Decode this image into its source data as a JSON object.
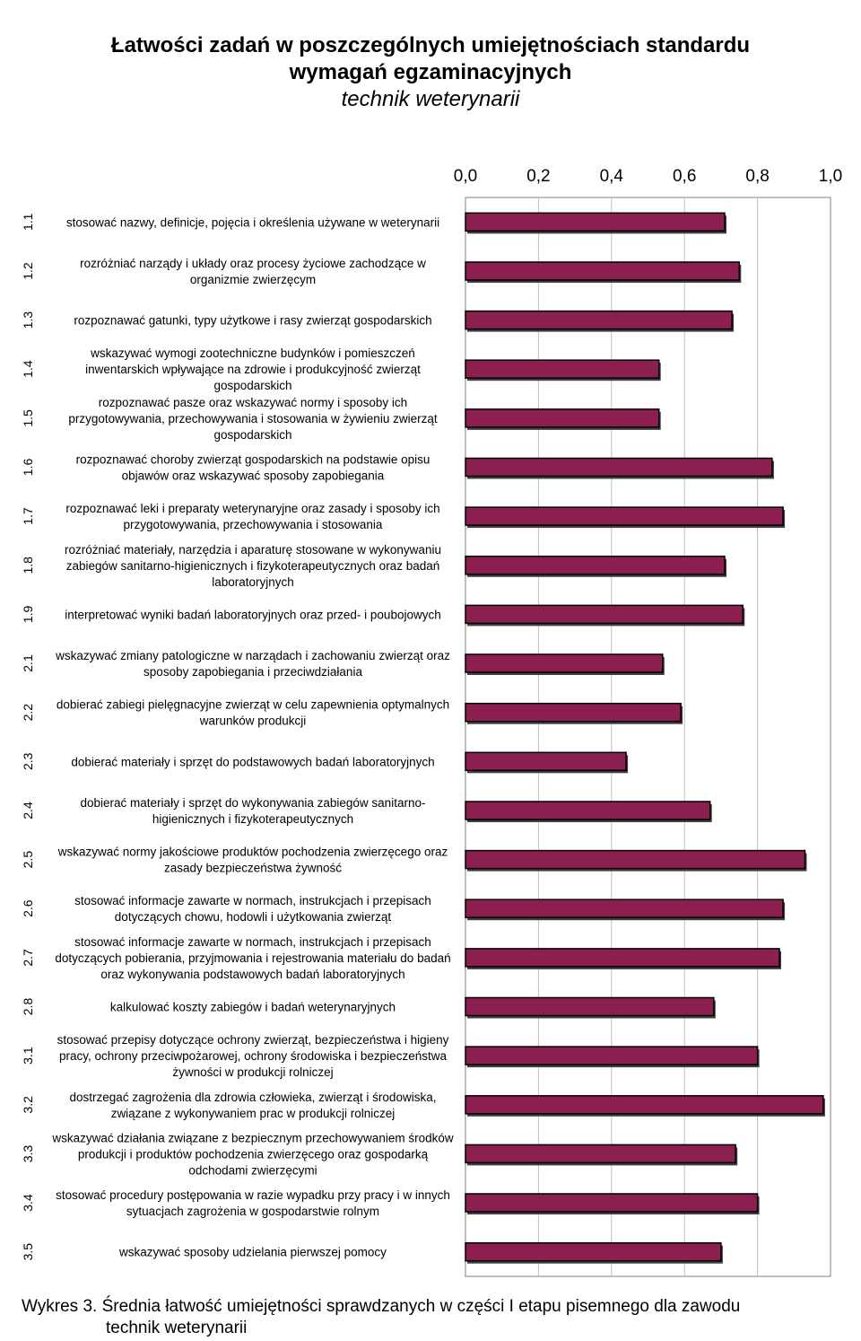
{
  "title_line1": "Łatwości zadań w poszczególnych umiejętnościach standardu",
  "title_line2": "wymagań egzaminacyjnych",
  "subtitle": "technik weterynarii",
  "caption_line1": "Wykres 3. Średnia łatwość umiejętności sprawdzanych w części I etapu pisemnego dla zawodu",
  "caption_line2": "technik weterynarii",
  "colors": {
    "bar": "#8b1f4f",
    "bar_edge": "#000000",
    "grid": "#bfbfbf"
  },
  "chart_data": {
    "type": "bar",
    "orientation": "horizontal",
    "xlim": [
      0,
      1
    ],
    "x_ticks": [
      "0,0",
      "0,2",
      "0,4",
      "0,6",
      "0,8",
      "1,0"
    ],
    "grid": true,
    "categories": [
      "1.1",
      "1.2",
      "1.3",
      "1.4",
      "1.5",
      "1.6",
      "1.7",
      "1.8",
      "1.9",
      "2.1",
      "2.2",
      "2.3",
      "2.4",
      "2.5",
      "2.6",
      "2.7",
      "2.8",
      "3.1",
      "3.2",
      "3.3",
      "3.4",
      "3.5"
    ],
    "labels": [
      [
        "stosować nazwy, definicje, pojęcia i określenia używane w weterynarii"
      ],
      [
        "rozróżniać narządy i układy oraz procesy życiowe zachodzące w",
        "organizmie zwierzęcym"
      ],
      [
        "rozpoznawać gatunki, typy użytkowe i rasy zwierząt gospodarskich"
      ],
      [
        "wskazywać wymogi zootechniczne budynków i pomieszczeń",
        "inwentarskich wpływające na zdrowie            i produkcyjność zwierząt",
        "gospodarskich"
      ],
      [
        "rozpoznawać pasze oraz wskazywać normy i sposoby ich",
        "przygotowywania, przechowywania i stosowania w żywieniu zwierząt",
        "gospodarskich"
      ],
      [
        "rozpoznawać choroby zwierząt gospodarskich na podstawie opisu",
        "objawów oraz wskazywać sposoby zapobiegania"
      ],
      [
        "rozpoznawać leki i preparaty weterynaryjne oraz zasady i sposoby ich",
        "przygotowywania, przechowywania    i stosowania"
      ],
      [
        "rozróżniać materiały, narzędzia i aparaturę stosowane w wykonywaniu",
        "zabiegów sanitarno-higienicznych    i fizykoterapeutycznych oraz badań",
        "laboratoryjnych"
      ],
      [
        "interpretować wyniki badań laboratoryjnych oraz przed- i poubojowych"
      ],
      [
        "wskazywać zmiany patologiczne w narządach i zachowaniu zwierząt oraz",
        "sposoby zapobiegania                  i przeciwdziałania"
      ],
      [
        "dobierać zabiegi pielęgnacyjne zwierząt w celu zapewnienia optymalnych",
        "warunków  produkcji"
      ],
      [
        "dobierać materiały i sprzęt do podstawowych badań laboratoryjnych"
      ],
      [
        "dobierać materiały i sprzęt do wykonywania zabiegów sanitarno-",
        "higienicznych i fizykoterapeutycznych"
      ],
      [
        "wskazywać normy jakościowe produktów pochodzenia zwierzęcego oraz",
        "zasady bezpieczeństwa żywność"
      ],
      [
        "stosować informacje zawarte w normach, instrukcjach i przepisach",
        "dotyczących chowu, hodowli                  i użytkowania zwierząt"
      ],
      [
        "stosować informacje zawarte w normach, instrukcjach i przepisach",
        "dotyczących pobierania, przyjmowania i rejestrowania materiału do badań",
        "oraz wykonywania podstawowych badań laboratoryjnych"
      ],
      [
        "kalkulować koszty zabiegów i badań weterynaryjnych"
      ],
      [
        "stosować przepisy dotyczące ochrony zwierząt, bezpieczeństwa i higieny",
        "pracy, ochrony przeciwpożarowej, ochrony środowiska i bezpieczeństwa",
        "żywności w produkcji rolniczej"
      ],
      [
        "dostrzegać zagrożenia dla zdrowia człowieka, zwierząt i środowiska,",
        "związane z wykonywaniem prac      w produkcji rolniczej"
      ],
      [
        "wskazywać działania związane z bezpiecznym przechowywaniem środków",
        "produkcji i produktów pochodzenia zwierzęcego oraz gospodarką",
        "odchodami zwierzęcymi"
      ],
      [
        "stosować procedury postępowania w razie wypadku przy pracy i w innych",
        "sytuacjach zagrożenia               w gospodarstwie rolnym"
      ],
      [
        "wskazywać sposoby udzielania pierwszej pomocy"
      ]
    ],
    "values": [
      0.71,
      0.75,
      0.73,
      0.53,
      0.53,
      0.84,
      0.87,
      0.71,
      0.76,
      0.54,
      0.59,
      0.44,
      0.67,
      0.93,
      0.87,
      0.86,
      0.68,
      0.8,
      0.98,
      0.74,
      0.8,
      0.7
    ]
  }
}
